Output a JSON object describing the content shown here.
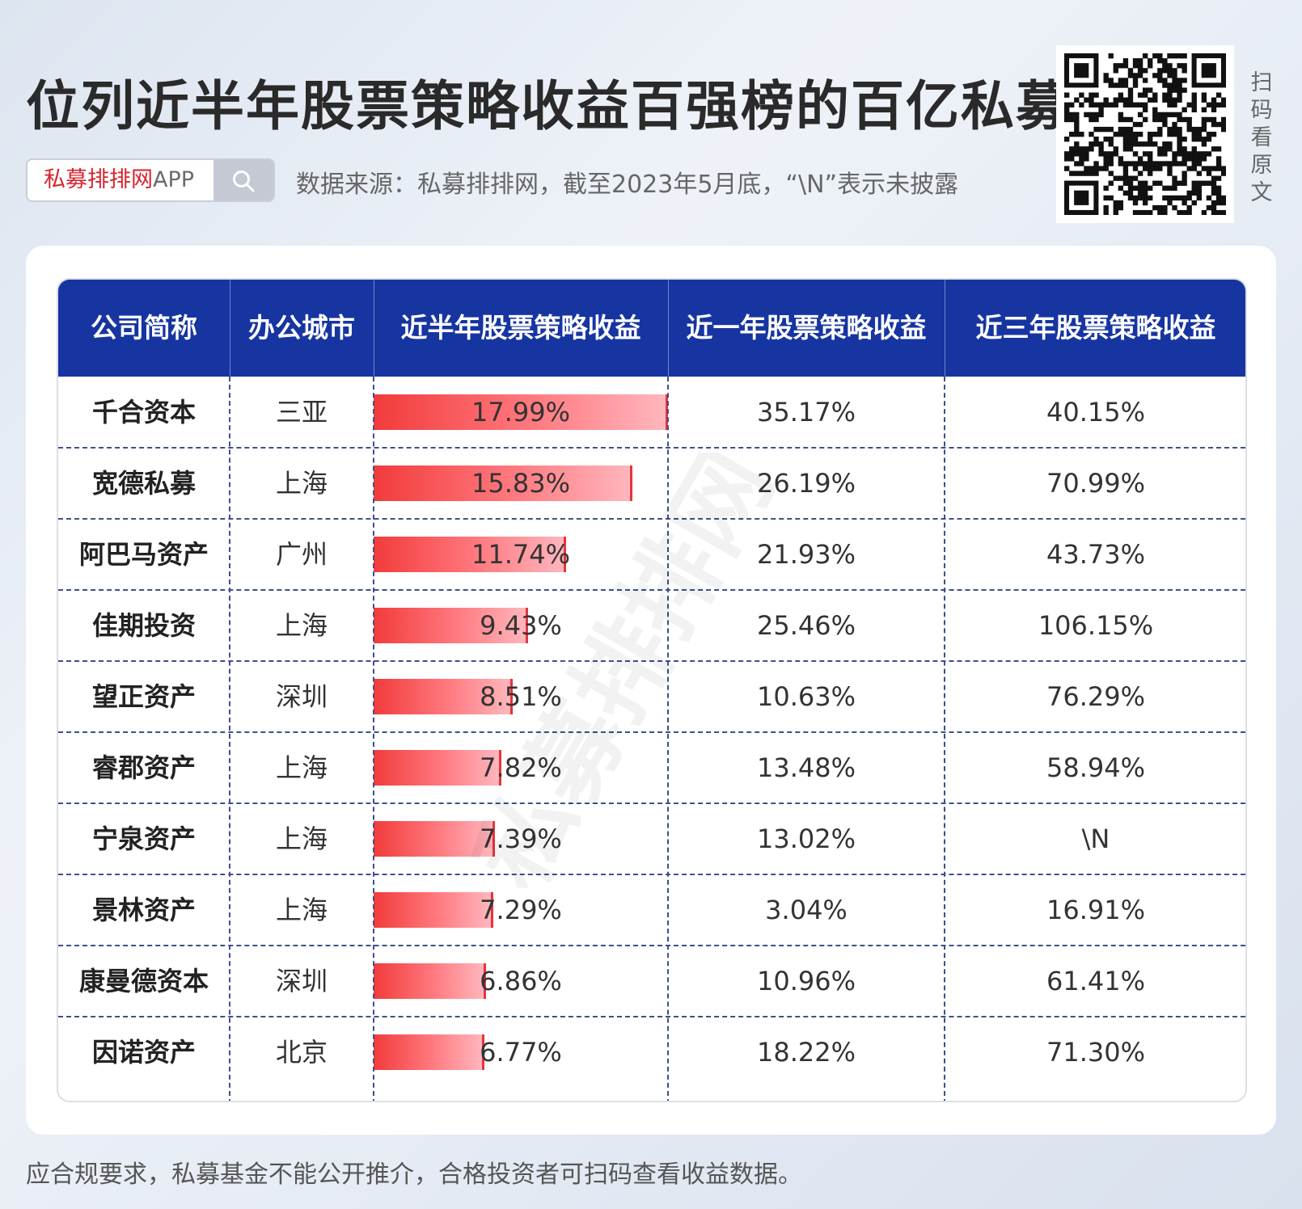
{
  "title": "位列近半年股票策略收益百强榜的百亿私募",
  "search": {
    "brand_red": "私募排排网",
    "brand_grey": "APP",
    "icon": "search-icon"
  },
  "source_note": "数据来源：私募排排网，截至2023年5月底，“\\N”表示未披露",
  "scan_text": "扫码看原文",
  "watermark": "私募排排网",
  "footer": "应合规要求，私募基金不能公开推介，合格投资者可扫码查看收益数据。",
  "colors": {
    "header_bg": "#1735a1",
    "bar_start": "#f23b3b",
    "bar_end": "#ffb6bd",
    "title": "#2a2a2a"
  },
  "chart_data": {
    "type": "table",
    "columns": [
      "公司简称",
      "办公城市",
      "近半年股票策略收益",
      "近一年股票策略收益",
      "近三年股票策略收益"
    ],
    "bar_column": 2,
    "bar_max": 17.99,
    "rows": [
      {
        "name": "千合资本",
        "city": "三亚",
        "half_year": 17.99,
        "half_year_label": "17.99%",
        "one_year": "35.17%",
        "three_year": "40.15%"
      },
      {
        "name": "宽德私募",
        "city": "上海",
        "half_year": 15.83,
        "half_year_label": "15.83%",
        "one_year": "26.19%",
        "three_year": "70.99%"
      },
      {
        "name": "阿巴马资产",
        "city": "广州",
        "half_year": 11.74,
        "half_year_label": "11.74%",
        "one_year": "21.93%",
        "three_year": "43.73%"
      },
      {
        "name": "佳期投资",
        "city": "上海",
        "half_year": 9.43,
        "half_year_label": "9.43%",
        "one_year": "25.46%",
        "three_year": "106.15%"
      },
      {
        "name": "望正资产",
        "city": "深圳",
        "half_year": 8.51,
        "half_year_label": "8.51%",
        "one_year": "10.63%",
        "three_year": "76.29%"
      },
      {
        "name": "睿郡资产",
        "city": "上海",
        "half_year": 7.82,
        "half_year_label": "7.82%",
        "one_year": "13.48%",
        "three_year": "58.94%"
      },
      {
        "name": "宁泉资产",
        "city": "上海",
        "half_year": 7.39,
        "half_year_label": "7.39%",
        "one_year": "13.02%",
        "three_year": "\\N"
      },
      {
        "name": "景林资产",
        "city": "上海",
        "half_year": 7.29,
        "half_year_label": "7.29%",
        "one_year": "3.04%",
        "three_year": "16.91%"
      },
      {
        "name": "康曼德资本",
        "city": "深圳",
        "half_year": 6.86,
        "half_year_label": "6.86%",
        "one_year": "10.96%",
        "three_year": "61.41%"
      },
      {
        "name": "因诺资产",
        "city": "北京",
        "half_year": 6.77,
        "half_year_label": "6.77%",
        "one_year": "18.22%",
        "three_year": "71.30%"
      }
    ]
  }
}
